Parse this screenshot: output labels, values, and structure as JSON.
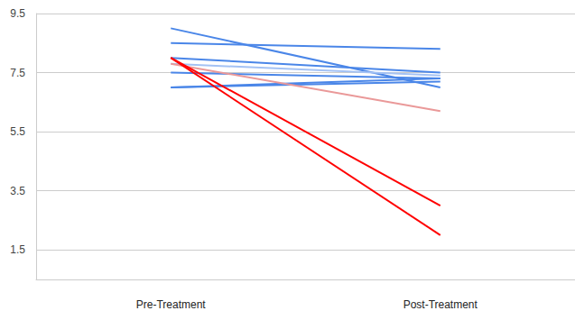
{
  "chart_data": {
    "type": "line",
    "categories": [
      "Pre-Treatment",
      "Post-Treatment"
    ],
    "series": [
      {
        "color": "#4a86e8",
        "values": [
          9.0,
          7.0
        ]
      },
      {
        "color": "#4a86e8",
        "values": [
          8.5,
          8.3
        ]
      },
      {
        "color": "#4a86e8",
        "values": [
          8.0,
          7.5
        ]
      },
      {
        "color": "#a4c2f4",
        "values": [
          7.8,
          7.4
        ]
      },
      {
        "color": "#4a86e8",
        "values": [
          7.5,
          7.3
        ]
      },
      {
        "color": "#4a86e8",
        "values": [
          7.0,
          7.3
        ]
      },
      {
        "color": "#4a86e8",
        "values": [
          7.0,
          7.2
        ]
      },
      {
        "color": "#ea9999",
        "values": [
          7.8,
          6.2
        ]
      },
      {
        "color": "#ff0000",
        "values": [
          8.0,
          3.0
        ]
      },
      {
        "color": "#ff0000",
        "values": [
          8.0,
          2.0
        ]
      }
    ],
    "ylim": [
      0.5,
      9.5
    ],
    "yticks": [
      1.5,
      3.5,
      5.5,
      7.5,
      9.5
    ],
    "grid": true
  }
}
